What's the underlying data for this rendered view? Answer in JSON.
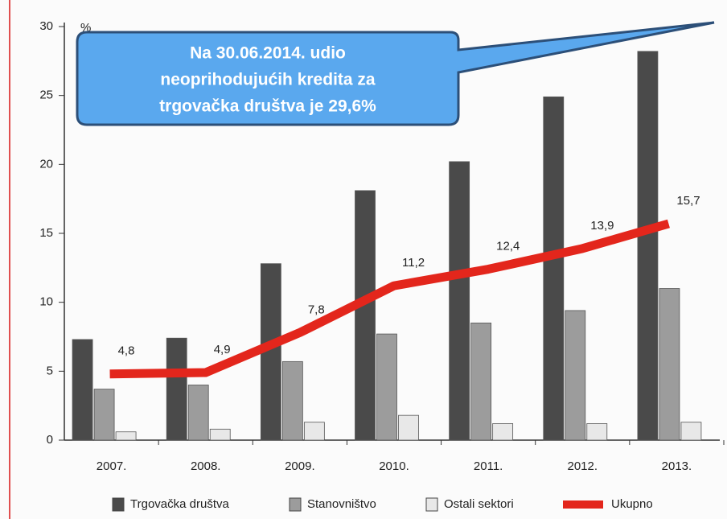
{
  "chart_data": {
    "type": "bar",
    "unit": "%",
    "annotation": [
      "Na 30.06.2014. udio",
      "neoprihodujućih kredita za",
      "trgovačka društva je 29,6%"
    ],
    "categories": [
      "2007.",
      "2008.",
      "2009.",
      "2010.",
      "2011.",
      "2012.",
      "2013."
    ],
    "series": [
      {
        "name": "Trgovačka društva",
        "color": "#4a4a4a",
        "values": [
          7.3,
          7.4,
          12.8,
          18.1,
          20.2,
          24.9,
          28.2
        ]
      },
      {
        "name": "Stanovništvo",
        "color": "#9c9c9c",
        "values": [
          3.7,
          4.0,
          5.7,
          7.7,
          8.5,
          9.4,
          11.0
        ]
      },
      {
        "name": "Ostali sektori",
        "color": "#e8e8e8",
        "values": [
          0.6,
          0.8,
          1.3,
          1.8,
          1.2,
          1.2,
          1.3
        ]
      },
      {
        "name": "Ukupno",
        "color": "#e3261c",
        "type": "line",
        "values": [
          4.8,
          4.9,
          7.8,
          11.2,
          12.4,
          13.9,
          15.7
        ],
        "value_labels": [
          "4,8",
          "4,9",
          "7,8",
          "11,2",
          "12,4",
          "13,9",
          "15,7"
        ]
      }
    ],
    "ylim": [
      0,
      30
    ],
    "yticks": [
      0,
      5,
      10,
      15,
      20,
      25,
      30
    ],
    "grid": false
  }
}
